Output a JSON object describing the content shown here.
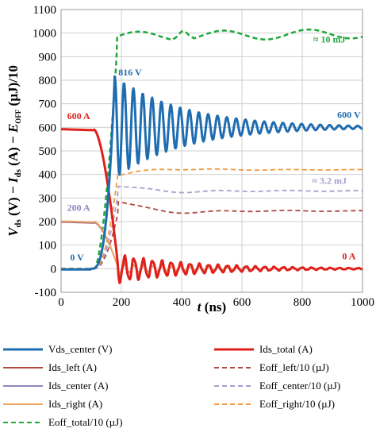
{
  "chart_data": {
    "type": "line",
    "xlabel": "t (ns)",
    "xlabel_italic": "t",
    "xlabel_rest": " (ns)",
    "ylabel_parts": {
      "v": "V",
      "v_sub": "ds",
      "mid1": " (V) − ",
      "i": "I",
      "i_sub": "ds",
      "mid2": " (A) − ",
      "e": "E",
      "e_sub": "OFF",
      "end": " (µJ)/10"
    },
    "xlim": [
      0,
      1000
    ],
    "ylim": [
      -100,
      1100
    ],
    "xticks": [
      "0",
      "200",
      "400",
      "600",
      "800",
      "1000"
    ],
    "yticks": [
      "-100",
      "0",
      "100",
      "200",
      "300",
      "400",
      "500",
      "600",
      "700",
      "800",
      "900",
      "1000",
      "1100"
    ],
    "series": [
      {
        "name": "Vds_center (V)",
        "color": "#1f6db0",
        "dash": "solid"
      },
      {
        "name": "Ids_total (A)",
        "color": "#e0201b",
        "dash": "solid"
      },
      {
        "name": "Ids_left (A)",
        "color": "#b04a43",
        "dash": "solid"
      },
      {
        "name": "Eoff_left/10 (µJ)",
        "color": "#b04a43",
        "dash": "dash"
      },
      {
        "name": "Ids_center (A)",
        "color": "#8f86bc",
        "dash": "solid"
      },
      {
        "name": "Eoff_center/10 (µJ)",
        "color": "#a5a0cf",
        "dash": "dash"
      },
      {
        "name": "Ids_right (A)",
        "color": "#f0a460",
        "dash": "solid"
      },
      {
        "name": "Eoff_right/10 (µJ)",
        "color": "#f2993e",
        "dash": "dash"
      },
      {
        "name": "Eoff_total/10 (µJ)",
        "color": "#1ea83a",
        "dash": "dash"
      }
    ],
    "annotations": [
      {
        "text": "816 V",
        "x": 190,
        "y": 820,
        "color": "#1f6db0"
      },
      {
        "text": "600 V",
        "x": 955,
        "y": 640,
        "color": "#1f6db0"
      },
      {
        "text": "600 A",
        "x": 20,
        "y": 635,
        "color": "#e0201b"
      },
      {
        "text": "200 A",
        "x": 20,
        "y": 245,
        "color": "#8f86bc"
      },
      {
        "text": "0 V",
        "x": 30,
        "y": 35,
        "color": "#1f6db0"
      },
      {
        "text": "0 A",
        "x": 955,
        "y": 40,
        "color": "#e0201b"
      },
      {
        "text": "≈ 10 mJ",
        "x": 890,
        "y": 960,
        "color": "#1ea83a"
      },
      {
        "text": "≈ 3.2 mJ",
        "x": 890,
        "y": 360,
        "color": "#a5a0cf"
      }
    ]
  }
}
